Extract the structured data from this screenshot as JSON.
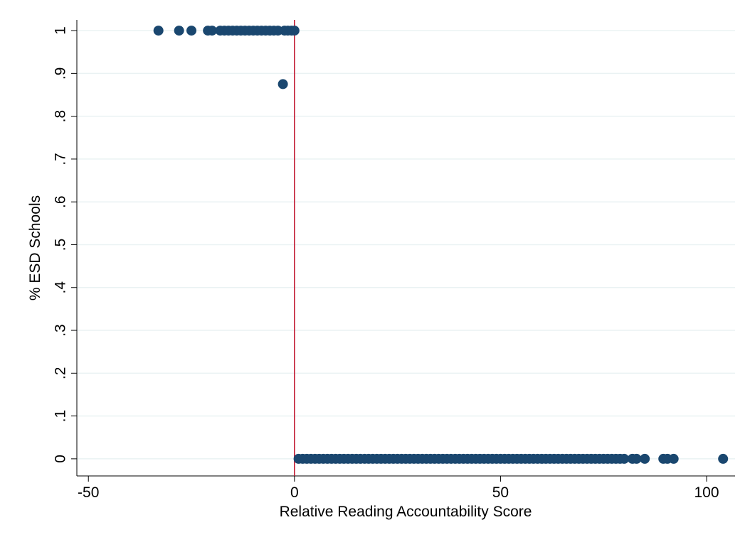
{
  "chart_data": {
    "type": "scatter",
    "xlabel": "Relative Reading Accountability Score",
    "ylabel": "% ESD Schools",
    "xlim": [
      -52.8,
      106.9
    ],
    "ylim": [
      -0.04,
      1.025
    ],
    "xticks": [
      -50,
      0,
      50,
      100
    ],
    "yticks": [
      0,
      {
        "value": 0.1,
        "label": ".1"
      },
      {
        "value": 0.2,
        "label": ".2"
      },
      {
        "value": 0.3,
        "label": ".3"
      },
      {
        "value": 0.4,
        "label": ".4"
      },
      {
        "value": 0.5,
        "label": ".5"
      },
      {
        "value": 0.6,
        "label": ".6"
      },
      {
        "value": 0.7,
        "label": ".7"
      },
      {
        "value": 0.8,
        "label": ".8"
      },
      {
        "value": 0.9,
        "label": ".9"
      },
      1
    ],
    "grid": true,
    "reference_line": {
      "x": 0,
      "color": "#c0102a"
    },
    "series": [
      {
        "color": "#1a476f",
        "x": [
          -33,
          -28,
          -25,
          -21,
          -20,
          -18,
          -17,
          -16,
          -15,
          -14,
          -13,
          -12,
          -11,
          -10,
          -9,
          -8,
          -7,
          -6,
          -5,
          -4,
          -2.8,
          -2.4,
          -1.6,
          -0.7,
          0,
          1,
          2,
          3,
          4,
          5,
          6,
          7,
          8,
          9,
          10,
          11,
          12,
          13,
          14,
          15,
          16,
          17,
          18,
          19,
          20,
          21,
          22,
          23,
          24,
          25,
          26,
          27,
          28,
          29,
          30,
          31,
          32,
          33,
          34,
          35,
          36,
          37,
          38,
          39,
          40,
          41,
          42,
          43,
          44,
          45,
          46,
          47,
          48,
          49,
          50,
          51,
          52,
          53,
          54,
          55,
          56,
          57,
          58,
          59,
          60,
          61,
          62,
          63,
          64,
          65,
          66,
          67,
          68,
          69,
          70,
          71,
          72,
          73,
          74,
          75,
          76,
          77,
          78,
          79,
          80,
          82,
          83,
          85,
          89.5,
          90.5,
          92,
          104
        ],
        "values": [
          1,
          1,
          1,
          1,
          1,
          1,
          1,
          1,
          1,
          1,
          1,
          1,
          1,
          1,
          1,
          1,
          1,
          1,
          1,
          1,
          0.875,
          1,
          1,
          1,
          1,
          0,
          0,
          0,
          0,
          0,
          0,
          0,
          0,
          0,
          0,
          0,
          0,
          0,
          0,
          0,
          0,
          0,
          0,
          0,
          0,
          0,
          0,
          0,
          0,
          0,
          0,
          0,
          0,
          0,
          0,
          0,
          0,
          0,
          0,
          0,
          0,
          0,
          0,
          0,
          0,
          0,
          0,
          0,
          0,
          0,
          0,
          0,
          0,
          0,
          0,
          0,
          0,
          0,
          0,
          0,
          0,
          0,
          0,
          0,
          0,
          0,
          0,
          0,
          0,
          0,
          0,
          0,
          0,
          0,
          0,
          0,
          0,
          0,
          0,
          0,
          0,
          0,
          0,
          0,
          0,
          0,
          0,
          0,
          0,
          0,
          0,
          0
        ]
      }
    ]
  }
}
